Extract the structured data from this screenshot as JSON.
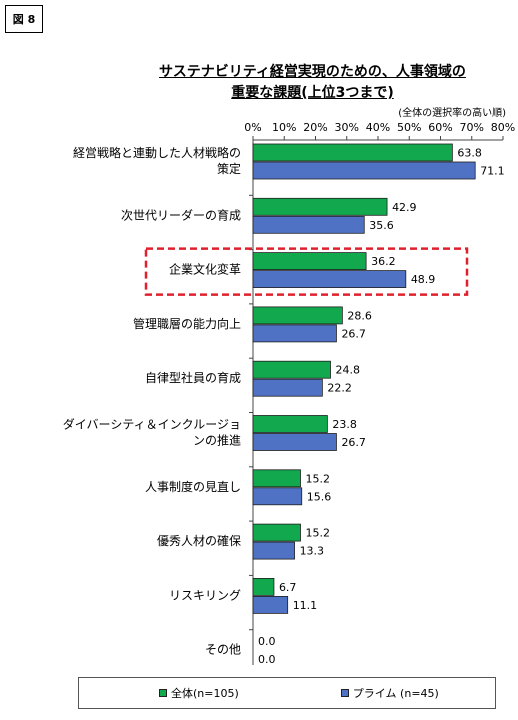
{
  "figure_label": "図 8",
  "chart_data": {
    "type": "bar",
    "orientation": "horizontal",
    "title_lines": [
      "サステナビリティ経営実現のための、人事領域の",
      "重要な課題(上位3つまで)"
    ],
    "note": "(全体の選択率の高い順)",
    "xlim": [
      0,
      80
    ],
    "ticks": [
      "0%",
      "10%",
      "20%",
      "30%",
      "40%",
      "50%",
      "60%",
      "70%",
      "80%"
    ],
    "categories": [
      [
        "経営戦略と連動した人材戦略の",
        "策定"
      ],
      [
        "次世代リーダーの育成"
      ],
      [
        "企業文化変革"
      ],
      [
        "管理職層の能力向上"
      ],
      [
        "自律型社員の育成"
      ],
      [
        "ダイバーシティ＆インクルージョ",
        "ンの推進"
      ],
      [
        "人事制度の見直し"
      ],
      [
        "優秀人材の確保"
      ],
      [
        "リスキリング"
      ],
      [
        "その他"
      ]
    ],
    "series": [
      {
        "name": "全体(n=105)",
        "color": "#12a84e",
        "values": [
          63.8,
          42.9,
          36.2,
          28.6,
          24.8,
          23.8,
          15.2,
          15.2,
          6.7,
          0.0
        ]
      },
      {
        "name": "プライム (n=45)",
        "color": "#4f72c4",
        "values": [
          71.1,
          35.6,
          48.9,
          26.7,
          22.2,
          26.7,
          15.6,
          13.3,
          11.1,
          0.0
        ]
      }
    ],
    "highlight_category": "企業文化変革",
    "highlight_color": "#e0202c"
  }
}
